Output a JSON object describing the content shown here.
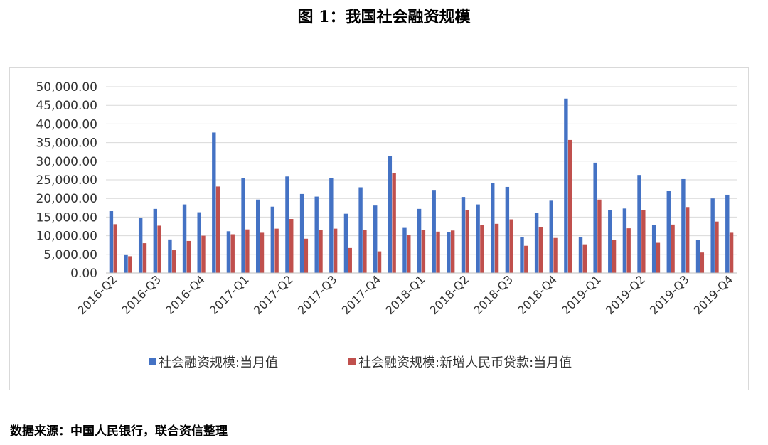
{
  "title": "图 1：我国社会融资规模",
  "source": "数据来源：中国人民银行，联合资信整理",
  "chart_data": {
    "type": "bar",
    "title": "",
    "xlabel": "",
    "ylabel": "",
    "ylim": [
      0,
      50000
    ],
    "yticks": [
      "0.00",
      "5,000.00",
      "10,000.00",
      "15,000.00",
      "20,000.00",
      "25,000.00",
      "30,000.00",
      "35,000.00",
      "40,000.00",
      "45,000.00",
      "50,000.00"
    ],
    "grid": true,
    "legend_position": "bottom",
    "x_tick_labels": [
      {
        "label": "2016-Q2",
        "index": 0
      },
      {
        "label": "2016-Q3",
        "index": 3
      },
      {
        "label": "2016-Q4",
        "index": 6
      },
      {
        "label": "2017-Q1",
        "index": 9
      },
      {
        "label": "2017-Q2",
        "index": 12
      },
      {
        "label": "2017-Q3",
        "index": 15
      },
      {
        "label": "2017-Q4",
        "index": 18
      },
      {
        "label": "2018-Q1",
        "index": 21
      },
      {
        "label": "2018-Q2",
        "index": 24
      },
      {
        "label": "2018-Q3",
        "index": 27
      },
      {
        "label": "2018-Q4",
        "index": 30
      },
      {
        "label": "2019-Q1",
        "index": 33
      },
      {
        "label": "2019-Q2",
        "index": 36
      },
      {
        "label": "2019-Q3",
        "index": 39
      },
      {
        "label": "2019-Q4",
        "index": 42
      }
    ],
    "series": [
      {
        "name": "社会融资规模:当月值",
        "color": "#4472c4",
        "values": [
          16600,
          4800,
          14700,
          17200,
          9000,
          18400,
          16300,
          37700,
          11200,
          25500,
          19700,
          17800,
          25900,
          21200,
          20500,
          25500,
          15900,
          23000,
          18100,
          31400,
          12100,
          17200,
          22300,
          11000,
          20400,
          18400,
          24100,
          23100,
          9700,
          16100,
          19400,
          46800,
          9700,
          29600,
          16800,
          17300,
          26300,
          12900,
          22000,
          25200,
          8800,
          20000,
          21000
        ]
      },
      {
        "name": "社会融资规模:新增人民币贷款:当月值",
        "color": "#c0504d",
        "values": [
          13100,
          4500,
          8000,
          12700,
          6100,
          8600,
          10000,
          23200,
          10400,
          11700,
          10800,
          11900,
          14500,
          9200,
          11500,
          11900,
          6700,
          11600,
          5800,
          26800,
          10200,
          11500,
          11100,
          11400,
          16900,
          12900,
          13200,
          14400,
          7300,
          12400,
          9400,
          35700,
          7700,
          19700,
          8800,
          12000,
          16800,
          8100,
          13000,
          17700,
          5500,
          13800,
          10800
        ]
      }
    ]
  }
}
